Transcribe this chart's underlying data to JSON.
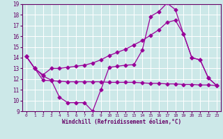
{
  "xlabel": "Windchill (Refroidissement éolien,°C)",
  "background_color": "#cce8e8",
  "grid_color": "#ffffff",
  "line_color": "#990099",
  "xlim": [
    -0.5,
    23.5
  ],
  "ylim": [
    9,
    19
  ],
  "xticks": [
    0,
    1,
    2,
    3,
    4,
    5,
    6,
    7,
    8,
    9,
    10,
    11,
    12,
    13,
    14,
    15,
    16,
    17,
    18,
    19,
    20,
    21,
    22,
    23
  ],
  "yticks": [
    9,
    10,
    11,
    12,
    13,
    14,
    15,
    16,
    17,
    18,
    19
  ],
  "line1_x": [
    0,
    1,
    2,
    3,
    4,
    5,
    6,
    7,
    8,
    9,
    10,
    11,
    12,
    13,
    14,
    15,
    16,
    17,
    18,
    19,
    20,
    21,
    22,
    23
  ],
  "line1_y": [
    14.1,
    13.0,
    11.9,
    11.85,
    11.8,
    11.75,
    11.75,
    11.75,
    11.75,
    11.75,
    11.7,
    11.7,
    11.7,
    11.7,
    11.65,
    11.6,
    11.6,
    11.55,
    11.55,
    11.5,
    11.5,
    11.45,
    11.45,
    11.4
  ],
  "line2_x": [
    0,
    1,
    2,
    3,
    4,
    5,
    6,
    7,
    8,
    9,
    10,
    11,
    12,
    13,
    14,
    15,
    16,
    17,
    18,
    19,
    20,
    21,
    22,
    23
  ],
  "line2_y": [
    14.1,
    13.0,
    12.3,
    11.9,
    10.3,
    9.8,
    9.8,
    9.8,
    9.0,
    11.0,
    13.1,
    13.2,
    13.3,
    13.35,
    14.7,
    17.85,
    18.3,
    19.1,
    18.5,
    16.2,
    14.0,
    13.8,
    12.1,
    11.4
  ],
  "line3_x": [
    0,
    1,
    2,
    3,
    4,
    5,
    6,
    7,
    8,
    9,
    10,
    11,
    12,
    13,
    14,
    15,
    16,
    17,
    18,
    19,
    20,
    21,
    22,
    23
  ],
  "line3_y": [
    14.1,
    13.0,
    12.4,
    13.0,
    13.0,
    13.1,
    13.2,
    13.3,
    13.5,
    13.8,
    14.2,
    14.5,
    14.8,
    15.2,
    15.6,
    16.1,
    16.6,
    17.3,
    17.5,
    16.2,
    14.0,
    13.8,
    12.1,
    11.4
  ]
}
